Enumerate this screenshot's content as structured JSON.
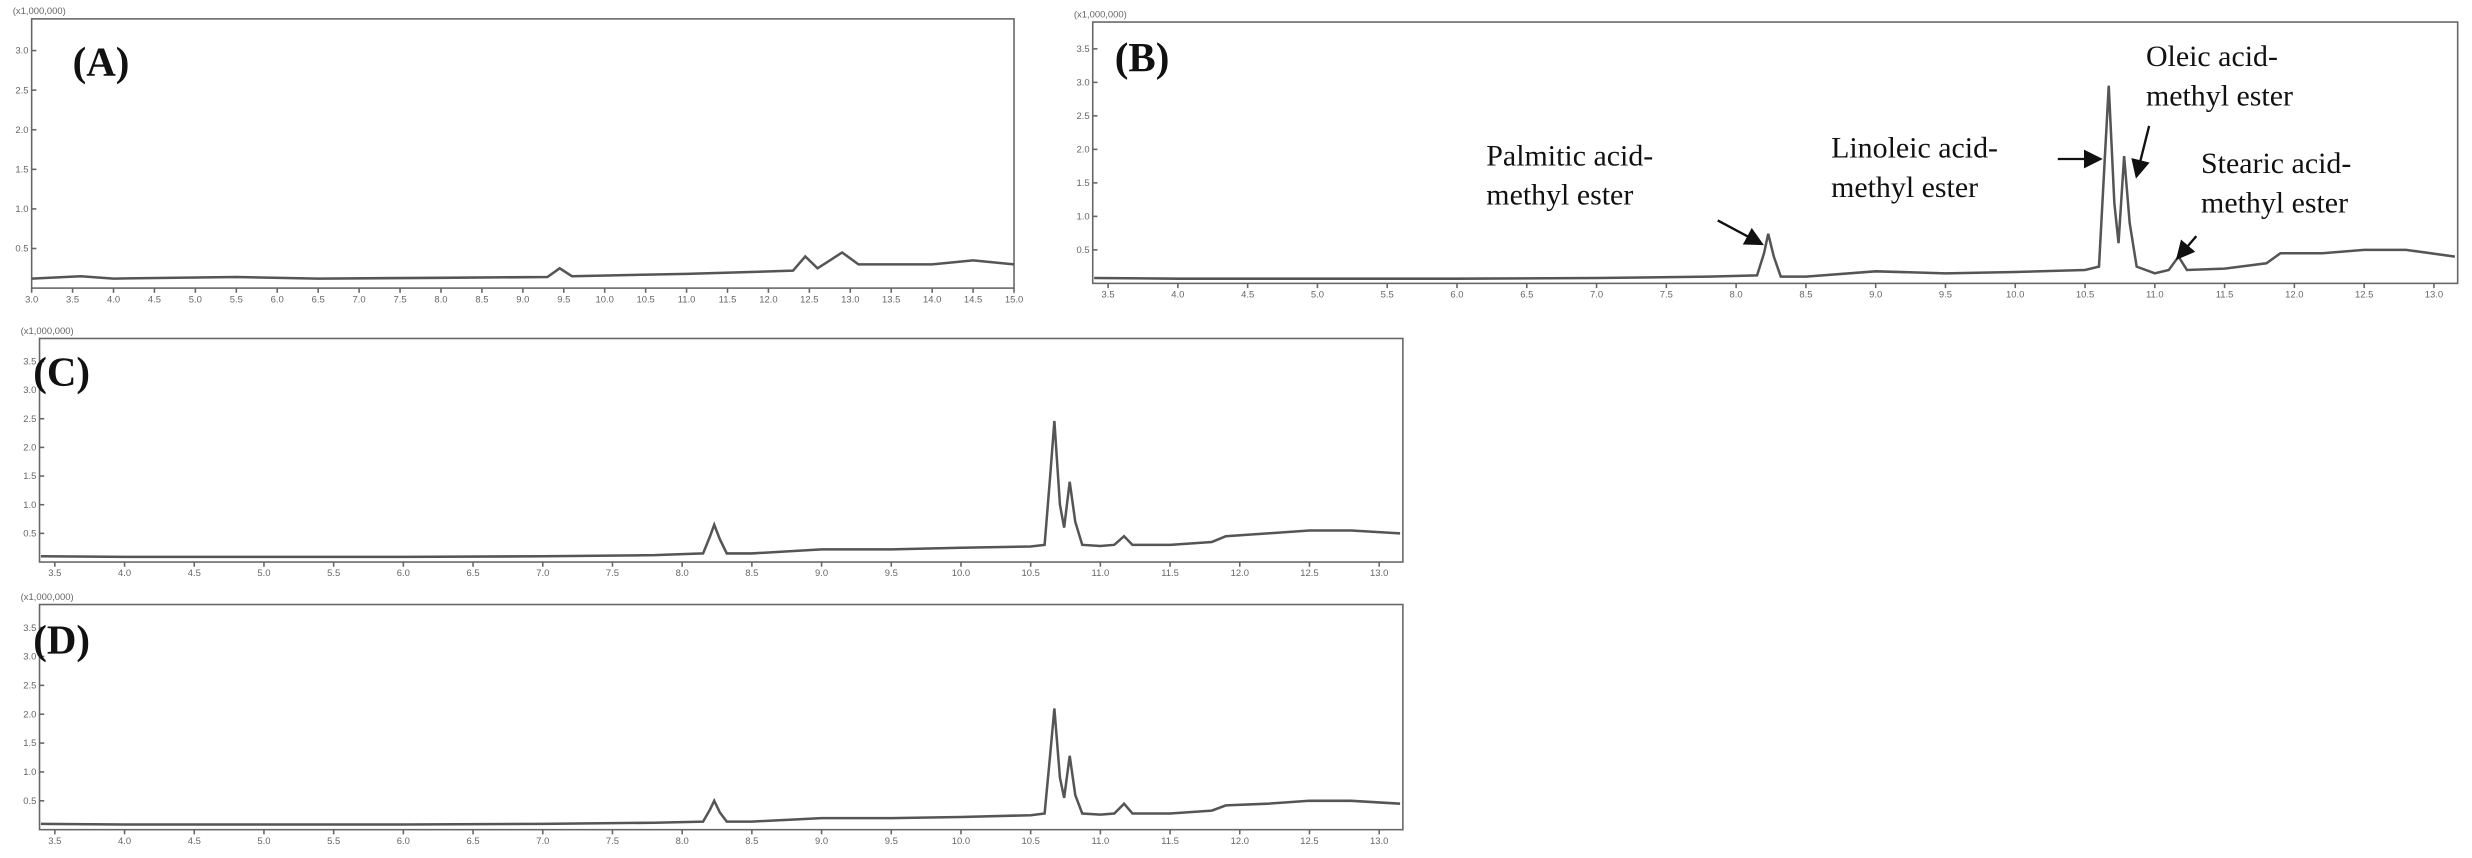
{
  "chart_data": [
    {
      "type": "line",
      "title": "(A)",
      "y_unit": "(x1,000,000)",
      "x": [
        3.0,
        3.6,
        4.0,
        5.5,
        6.5,
        8.0,
        9.3,
        9.45,
        9.6,
        11.0,
        12.3,
        12.45,
        12.6,
        12.75,
        12.9,
        13.1,
        14.0,
        14.5,
        15.0
      ],
      "series": [
        {
          "color": "#555555",
          "values": [
            0.12,
            0.15,
            0.12,
            0.14,
            0.12,
            0.13,
            0.14,
            0.25,
            0.15,
            0.18,
            0.22,
            0.4,
            0.25,
            0.35,
            0.45,
            0.3,
            0.3,
            0.35,
            0.3
          ]
        }
      ],
      "xlim": [
        3.0,
        15.0
      ],
      "ylim": [
        0,
        3.4
      ],
      "xticks": [
        {
          "value": 3,
          "label": "3.0"
        },
        3.5,
        {
          "value": 4,
          "label": "4.0"
        },
        4.5,
        {
          "value": 5,
          "label": "5.0"
        },
        5.5,
        {
          "value": 6,
          "label": "6.0"
        },
        6.5,
        {
          "value": 7,
          "label": "7.0"
        },
        7.5,
        {
          "value": 8,
          "label": "8.0"
        },
        8.5,
        {
          "value": 9,
          "label": "9.0"
        },
        9.5,
        {
          "value": 10,
          "label": "10.0"
        },
        10.5,
        {
          "value": 11,
          "label": "11.0"
        },
        11.5,
        {
          "value": 12,
          "label": "12.0"
        },
        12.5,
        {
          "value": 13,
          "label": "13.0"
        },
        13.5,
        {
          "value": 14,
          "label": "14.0"
        },
        14.5,
        {
          "value": 15,
          "label": "15.0"
        }
      ],
      "yticks": [
        0.5,
        {
          "value": 1,
          "label": "1.0"
        },
        1.5,
        {
          "value": 2,
          "label": "2.0"
        },
        2.5,
        {
          "value": 3,
          "label": "3.0"
        }
      ]
    },
    {
      "type": "line",
      "title": "(B)",
      "y_unit": "(x1,000,000)",
      "x": [
        3.4,
        4.0,
        5.0,
        6.0,
        7.0,
        7.8,
        8.15,
        8.2,
        8.23,
        8.27,
        8.32,
        8.5,
        9.0,
        9.5,
        10.0,
        10.5,
        10.6,
        10.64,
        10.67,
        10.71,
        10.74,
        10.78,
        10.82,
        10.87,
        11.0,
        11.1,
        11.17,
        11.23,
        11.5,
        11.8,
        11.9,
        12.2,
        12.5,
        12.8,
        13.15
      ],
      "series": [
        {
          "color": "#555555",
          "values": [
            0.08,
            0.07,
            0.07,
            0.07,
            0.08,
            0.1,
            0.12,
            0.45,
            0.74,
            0.4,
            0.1,
            0.1,
            0.18,
            0.15,
            0.17,
            0.2,
            0.25,
            1.8,
            2.95,
            1.2,
            0.6,
            1.9,
            0.9,
            0.25,
            0.15,
            0.2,
            0.4,
            0.2,
            0.22,
            0.3,
            0.45,
            0.45,
            0.5,
            0.5,
            0.4
          ]
        }
      ],
      "xlim": [
        3.39,
        13.17
      ],
      "ylim": [
        0,
        3.9
      ],
      "xticks": [
        3.5,
        {
          "value": 4,
          "label": "4.0"
        },
        4.5,
        {
          "value": 5,
          "label": "5.0"
        },
        5.5,
        {
          "value": 6,
          "label": "6.0"
        },
        6.5,
        {
          "value": 7,
          "label": "7.0"
        },
        7.5,
        {
          "value": 8,
          "label": "8.0"
        },
        8.5,
        {
          "value": 9,
          "label": "9.0"
        },
        9.5,
        {
          "value": 10,
          "label": "10.0"
        },
        10.5,
        {
          "value": 11,
          "label": "11.0"
        },
        11.5,
        {
          "value": 12,
          "label": "12.0"
        },
        12.5,
        {
          "value": 13,
          "label": "13.0"
        }
      ],
      "yticks": [
        0.5,
        {
          "value": 1,
          "label": "1.0"
        },
        1.5,
        {
          "value": 2,
          "label": "2.0"
        },
        2.5,
        {
          "value": 3,
          "label": "3.0"
        },
        3.5
      ],
      "annotations": [
        {
          "lines": [
            "Palmitic acid-",
            "methyl ester"
          ]
        },
        {
          "lines": [
            "Linoleic acid-",
            "methyl ester"
          ]
        },
        {
          "lines": [
            "Oleic acid-",
            "methyl ester"
          ]
        },
        {
          "lines": [
            "Stearic acid-",
            "methyl ester"
          ]
        }
      ]
    },
    {
      "type": "line",
      "title": "(C)",
      "y_unit": "(x1,000,000)",
      "x": [
        3.4,
        4.0,
        5.0,
        6.0,
        7.0,
        7.8,
        8.15,
        8.2,
        8.23,
        8.27,
        8.32,
        8.5,
        9.0,
        9.5,
        10.0,
        10.5,
        10.6,
        10.64,
        10.67,
        10.71,
        10.74,
        10.78,
        10.82,
        10.87,
        11.0,
        11.1,
        11.17,
        11.23,
        11.5,
        11.8,
        11.9,
        12.2,
        12.5,
        12.8,
        13.15
      ],
      "series": [
        {
          "color": "#555555",
          "values": [
            0.1,
            0.09,
            0.09,
            0.09,
            0.1,
            0.12,
            0.15,
            0.45,
            0.65,
            0.4,
            0.15,
            0.15,
            0.22,
            0.22,
            0.25,
            0.27,
            0.3,
            1.5,
            2.46,
            1.0,
            0.6,
            1.4,
            0.7,
            0.3,
            0.28,
            0.3,
            0.45,
            0.3,
            0.3,
            0.35,
            0.45,
            0.5,
            0.55,
            0.55,
            0.5
          ]
        }
      ],
      "xlim": [
        3.39,
        13.17
      ],
      "ylim": [
        0,
        3.9
      ],
      "xticks": [
        3.5,
        {
          "value": 4,
          "label": "4.0"
        },
        4.5,
        {
          "value": 5,
          "label": "5.0"
        },
        5.5,
        {
          "value": 6,
          "label": "6.0"
        },
        6.5,
        {
          "value": 7,
          "label": "7.0"
        },
        7.5,
        {
          "value": 8,
          "label": "8.0"
        },
        8.5,
        {
          "value": 9,
          "label": "9.0"
        },
        9.5,
        {
          "value": 10,
          "label": "10.0"
        },
        10.5,
        {
          "value": 11,
          "label": "11.0"
        },
        11.5,
        {
          "value": 12,
          "label": "12.0"
        },
        12.5,
        {
          "value": 13,
          "label": "13.0"
        }
      ],
      "yticks": [
        0.5,
        {
          "value": 1,
          "label": "1.0"
        },
        1.5,
        {
          "value": 2,
          "label": "2.0"
        },
        2.5,
        {
          "value": 3,
          "label": "3.0"
        },
        3.5
      ]
    },
    {
      "type": "line",
      "title": "(D)",
      "y_unit": "(x1,000,000)",
      "x": [
        3.4,
        4.0,
        5.0,
        6.0,
        7.0,
        7.8,
        8.15,
        8.2,
        8.23,
        8.27,
        8.32,
        8.5,
        9.0,
        9.5,
        10.0,
        10.5,
        10.6,
        10.64,
        10.67,
        10.71,
        10.74,
        10.78,
        10.82,
        10.87,
        11.0,
        11.1,
        11.17,
        11.23,
        11.5,
        11.8,
        11.9,
        12.2,
        12.5,
        12.8,
        13.15
      ],
      "series": [
        {
          "color": "#555555",
          "values": [
            0.1,
            0.09,
            0.09,
            0.09,
            0.1,
            0.12,
            0.14,
            0.35,
            0.5,
            0.3,
            0.14,
            0.14,
            0.2,
            0.2,
            0.22,
            0.25,
            0.28,
            1.3,
            2.1,
            0.9,
            0.55,
            1.28,
            0.6,
            0.28,
            0.26,
            0.28,
            0.45,
            0.28,
            0.28,
            0.33,
            0.42,
            0.45,
            0.5,
            0.5,
            0.45
          ]
        }
      ],
      "xlim": [
        3.39,
        13.17
      ],
      "ylim": [
        0,
        3.9
      ],
      "xticks": [
        3.5,
        {
          "value": 4,
          "label": "4.0"
        },
        4.5,
        {
          "value": 5,
          "label": "5.0"
        },
        5.5,
        {
          "value": 6,
          "label": "6.0"
        },
        6.5,
        {
          "value": 7,
          "label": "7.0"
        },
        7.5,
        {
          "value": 8,
          "label": "8.0"
        },
        8.5,
        {
          "value": 9,
          "label": "9.0"
        },
        9.5,
        {
          "value": 10,
          "label": "10.0"
        },
        10.5,
        {
          "value": 11,
          "label": "11.0"
        },
        11.5,
        {
          "value": 12,
          "label": "12.0"
        },
        12.5,
        {
          "value": 13,
          "label": "13.0"
        }
      ],
      "yticks": [
        0.5,
        {
          "value": 1,
          "label": "1.0"
        },
        1.5,
        {
          "value": 2,
          "label": "2.0"
        },
        2.5,
        {
          "value": 3,
          "label": "3.0"
        },
        3.5
      ]
    }
  ]
}
